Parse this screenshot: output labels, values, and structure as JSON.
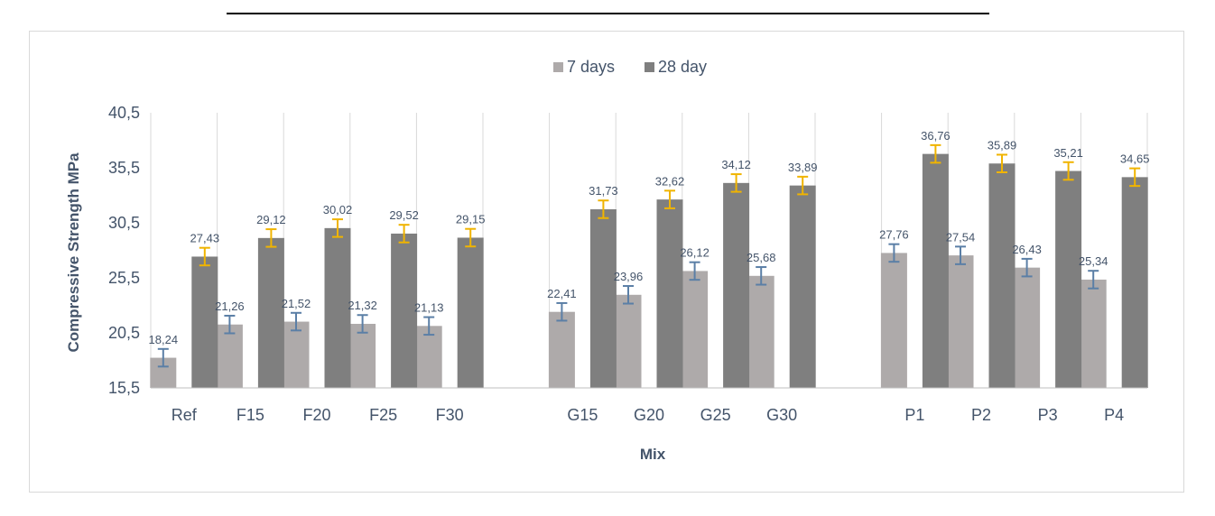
{
  "chart_data": {
    "type": "bar",
    "title": "",
    "xlabel": "Mix",
    "ylabel": "Compressive Strength MPa",
    "ylim": [
      15.5,
      40.5
    ],
    "yticks": [
      "15,5",
      "20,5",
      "25,5",
      "30,5",
      "35,5",
      "40,5"
    ],
    "ytick_values": [
      15.5,
      20.5,
      25.5,
      30.5,
      35.5,
      40.5
    ],
    "grid": "vertical category separators",
    "legend_position": "top-center",
    "categories": [
      "Ref",
      "F15",
      "F20",
      "F25",
      "F30",
      "",
      "G15",
      "G20",
      "G25",
      "G30",
      "",
      "P1",
      "P2",
      "P3",
      "P4"
    ],
    "series": [
      {
        "name": "7 days",
        "color": "#aeaaaa",
        "error_color": "#5b7fa6",
        "values": [
          18.24,
          21.26,
          21.52,
          21.32,
          21.13,
          null,
          22.41,
          23.96,
          26.12,
          25.68,
          null,
          27.76,
          27.54,
          26.43,
          25.34
        ],
        "labels": [
          "18,24",
          "21,26",
          "21,52",
          "21,32",
          "21,13",
          "",
          "22,41",
          "23,96",
          "26,12",
          "25,68",
          "",
          "27,76",
          "27,54",
          "26,43",
          "25,34"
        ]
      },
      {
        "name": "28 day",
        "color": "#7f7f7f",
        "error_color": "#f0b400",
        "values": [
          27.43,
          29.12,
          30.02,
          29.52,
          29.15,
          null,
          31.73,
          32.62,
          34.12,
          33.89,
          null,
          36.76,
          35.89,
          35.21,
          34.65
        ],
        "labels": [
          "27,43",
          "29,12",
          "30,02",
          "29,52",
          "29,15",
          "",
          "31,73",
          "32,62",
          "34,12",
          "33,89",
          "",
          "36,76",
          "35,89",
          "35,21",
          "34,65"
        ]
      }
    ],
    "error_bar": 0.8
  },
  "colors": {
    "axis_text": "#44546a",
    "gridline": "#d9d9d9",
    "axis_line": "#bfbfbf"
  }
}
